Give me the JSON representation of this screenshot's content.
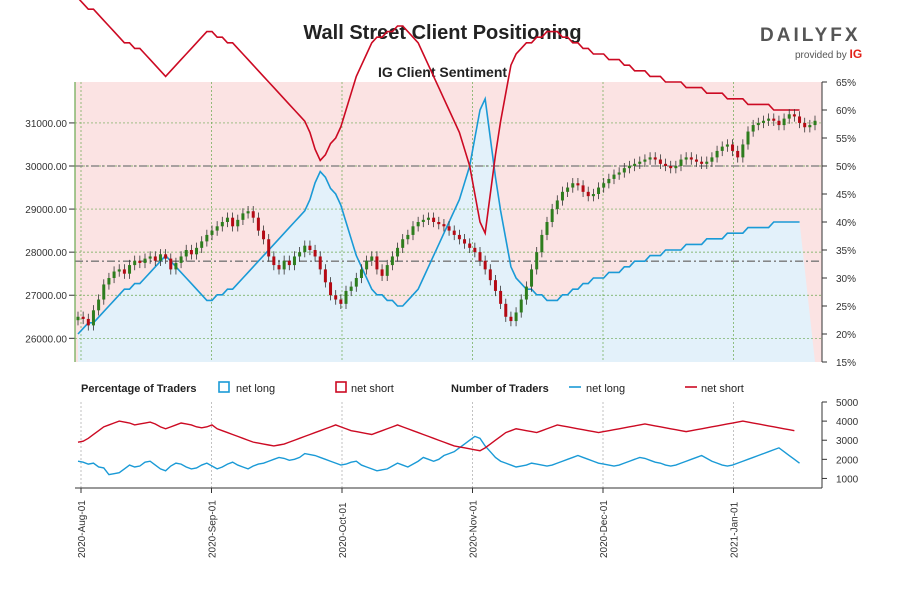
{
  "header": {
    "title": "Wall Street Client Positioning",
    "subtitle": "IG Client Sentiment",
    "brand": "DAILYFX",
    "brand_sub": "provided by",
    "brand_ig": "IG"
  },
  "legend": {
    "pct_title": "Percentage of Traders",
    "num_title": "Number of Traders",
    "net_long": "net long",
    "net_short": "net short"
  },
  "colors": {
    "net_long": "#1a9ad6",
    "net_short": "#cc0a23",
    "candle_up": "#2e7d1e",
    "candle_down": "#b40a14",
    "grid": "#6aa84f",
    "bg_short": "#fbe3e3",
    "bg_long": "#e3f1fa"
  },
  "chart_data": [
    {
      "type": "candlestick",
      "title": "IG Client Sentiment",
      "x_ticks": [
        "2020-Aug-01",
        "2020-Sep-01",
        "2020-Oct-01",
        "2020-Nov-01",
        "2020-Dec-01",
        "2021-Jan-01"
      ],
      "y_left": {
        "ticks": [
          "26000.00",
          "27000.00",
          "28000.00",
          "29000.00",
          "30000.00",
          "31000.00"
        ],
        "range": [
          25450,
          31950
        ]
      },
      "y_right": {
        "ticks": [
          "15%",
          "20%",
          "25%",
          "30%",
          "35%",
          "40%",
          "45%",
          "50%",
          "55%",
          "60%",
          "65%"
        ],
        "range": [
          15,
          65
        ]
      },
      "reference_lines": [
        50,
        33
      ],
      "grid": true,
      "price_close": [
        26500,
        26450,
        26300,
        26650,
        26900,
        27250,
        27400,
        27550,
        27600,
        27500,
        27700,
        27800,
        27750,
        27850,
        27900,
        27800,
        27950,
        27850,
        27600,
        27750,
        27900,
        28050,
        27950,
        28100,
        28250,
        28400,
        28500,
        28600,
        28700,
        28800,
        28600,
        28750,
        28900,
        28950,
        28800,
        28500,
        28300,
        27900,
        27700,
        27600,
        27800,
        27700,
        27900,
        28000,
        28150,
        28050,
        27900,
        27600,
        27300,
        27000,
        26900,
        26800,
        27100,
        27200,
        27400,
        27600,
        27800,
        27900,
        27600,
        27450,
        27700,
        27900,
        28100,
        28300,
        28400,
        28600,
        28700,
        28750,
        28800,
        28700,
        28650,
        28600,
        28500,
        28400,
        28300,
        28200,
        28100,
        28000,
        27800,
        27600,
        27350,
        27100,
        26800,
        26500,
        26400,
        26600,
        26900,
        27200,
        27600,
        28000,
        28400,
        28700,
        29000,
        29200,
        29400,
        29500,
        29600,
        29550,
        29400,
        29300,
        29350,
        29500,
        29600,
        29700,
        29800,
        29850,
        29950,
        30000,
        30050,
        30100,
        30150,
        30200,
        30150,
        30050,
        30000,
        29950,
        30000,
        30150,
        30200,
        30150,
        30100,
        30050,
        30100,
        30200,
        30350,
        30450,
        30500,
        30350,
        30200,
        30500,
        30800,
        30950,
        31000,
        31050,
        31100,
        31050,
        30950,
        31100,
        31200,
        31150,
        31000,
        30900,
        30950,
        31050
      ],
      "pct_net_long": [
        20,
        21,
        22,
        22,
        23,
        24,
        25,
        26,
        27,
        28,
        28,
        29,
        29,
        30,
        31,
        32,
        33,
        34,
        33,
        32,
        31,
        30,
        29,
        28,
        27,
        26,
        26,
        27,
        27,
        28,
        28,
        29,
        30,
        31,
        32,
        33,
        34,
        35,
        36,
        37,
        38,
        39,
        40,
        41,
        42,
        44,
        47,
        49,
        48,
        46,
        45,
        43,
        40,
        37,
        34,
        32,
        30,
        28,
        27,
        27,
        26,
        26,
        25,
        25,
        26,
        27,
        28,
        30,
        32,
        34,
        36,
        38,
        40,
        42,
        44,
        47,
        50,
        55,
        60,
        62,
        55,
        48,
        42,
        37,
        32,
        30,
        29,
        28,
        28,
        27,
        27,
        26,
        26,
        26,
        27,
        27,
        28,
        28,
        29,
        29,
        30,
        30,
        30,
        31,
        31,
        31,
        32,
        32,
        33,
        33,
        33,
        34,
        34,
        34,
        35,
        35,
        35,
        35,
        36,
        36,
        36,
        36,
        37,
        37,
        37,
        37,
        38,
        38,
        38,
        38,
        39,
        39,
        39,
        39,
        39,
        40,
        40,
        40,
        40,
        40,
        40
      ],
      "pct_net_short": [
        80,
        79,
        78,
        78,
        77,
        76,
        75,
        74,
        73,
        72,
        72,
        71,
        71,
        70,
        69,
        68,
        67,
        66,
        67,
        68,
        69,
        70,
        71,
        72,
        73,
        74,
        74,
        73,
        73,
        72,
        72,
        71,
        70,
        69,
        68,
        67,
        66,
        65,
        64,
        63,
        62,
        61,
        60,
        59,
        58,
        56,
        53,
        51,
        52,
        54,
        55,
        57,
        60,
        63,
        66,
        68,
        70,
        72,
        73,
        73,
        74,
        74,
        75,
        75,
        74,
        73,
        72,
        70,
        68,
        66,
        64,
        62,
        60,
        58,
        56,
        53,
        50,
        45,
        40,
        38,
        45,
        52,
        58,
        63,
        68,
        70,
        71,
        72,
        72,
        73,
        73,
        74,
        74,
        74,
        73,
        73,
        72,
        72,
        71,
        71,
        70,
        70,
        70,
        69,
        69,
        69,
        68,
        68,
        67,
        67,
        67,
        66,
        66,
        66,
        65,
        65,
        65,
        65,
        64,
        64,
        64,
        64,
        63,
        63,
        63,
        63,
        62,
        62,
        62,
        62,
        61,
        61,
        61,
        61,
        61,
        60,
        60,
        60,
        60,
        60,
        60
      ]
    },
    {
      "type": "line",
      "title": "Number of Traders",
      "y_ticks": [
        "1000",
        "2000",
        "3000",
        "4000",
        "5000"
      ],
      "ylim": [
        500,
        5000
      ],
      "series": [
        {
          "name": "net long",
          "color": "#1a9ad6",
          "values": [
            1900,
            1850,
            1750,
            1800,
            1600,
            1550,
            1200,
            1250,
            1300,
            1500,
            1700,
            1600,
            1650,
            1850,
            1900,
            1700,
            1500,
            1400,
            1650,
            1800,
            1750,
            1600,
            1500,
            1550,
            1700,
            1800,
            1650,
            1500,
            1600,
            1750,
            1850,
            1700,
            1600,
            1500,
            1650,
            1750,
            1800,
            1900,
            2000,
            2100,
            2050,
            1950,
            2000,
            2100,
            2300,
            2250,
            2200,
            2100,
            2000,
            1900,
            1800,
            1700,
            1750,
            1850,
            1900,
            1700,
            1600,
            1500,
            1400,
            1450,
            1500,
            1650,
            1800,
            1700,
            1600,
            1750,
            1900,
            2100,
            2000,
            1900,
            2000,
            2200,
            2300,
            2400,
            2600,
            2800,
            3000,
            3200,
            3100,
            2700,
            2400,
            2100,
            1900,
            1800,
            1700,
            1600,
            1650,
            1700,
            1800,
            1750,
            1700,
            1650,
            1700,
            1800,
            1900,
            2000,
            2100,
            2200,
            2100,
            2000,
            1900,
            1800,
            1750,
            1700,
            1650,
            1700,
            1800,
            1900,
            2000,
            2100,
            2050,
            1950,
            1850,
            1800,
            1700,
            1650,
            1700,
            1800,
            1900,
            2000,
            2100,
            2200,
            2050,
            1900,
            1800,
            1700,
            1650,
            1700,
            1800,
            1900,
            2000,
            2100,
            2200,
            2300,
            2400,
            2500,
            2600,
            2400,
            2200,
            2000,
            1800
          ]
        },
        {
          "name": "net short",
          "color": "#cc0a23",
          "values": [
            2900,
            2950,
            3100,
            3300,
            3500,
            3700,
            3800,
            3900,
            4000,
            3950,
            3900,
            3800,
            3850,
            3900,
            3950,
            3850,
            3700,
            3600,
            3700,
            3800,
            3900,
            3850,
            3800,
            3700,
            3650,
            3700,
            3800,
            3600,
            3500,
            3400,
            3300,
            3200,
            3100,
            3000,
            2900,
            2850,
            2800,
            2750,
            2700,
            2750,
            2800,
            2900,
            3000,
            3100,
            3200,
            3300,
            3400,
            3500,
            3600,
            3700,
            3800,
            3700,
            3600,
            3500,
            3450,
            3400,
            3350,
            3300,
            3400,
            3500,
            3600,
            3700,
            3800,
            3700,
            3600,
            3500,
            3400,
            3300,
            3200,
            3100,
            3000,
            2900,
            2800,
            2700,
            2650,
            2600,
            2550,
            2500,
            2450,
            2600,
            2800,
            3000,
            3200,
            3400,
            3500,
            3600,
            3550,
            3500,
            3450,
            3400,
            3500,
            3600,
            3700,
            3800,
            3750,
            3700,
            3650,
            3600,
            3550,
            3500,
            3450,
            3400,
            3450,
            3500,
            3550,
            3600,
            3650,
            3700,
            3750,
            3800,
            3850,
            3800,
            3750,
            3700,
            3650,
            3600,
            3550,
            3500,
            3450,
            3500,
            3550,
            3600,
            3650,
            3700,
            3750,
            3800,
            3850,
            3900,
            3950,
            4000,
            3950,
            3900,
            3850,
            3800,
            3750,
            3700,
            3650,
            3600,
            3550,
            3500
          ]
        }
      ]
    }
  ]
}
